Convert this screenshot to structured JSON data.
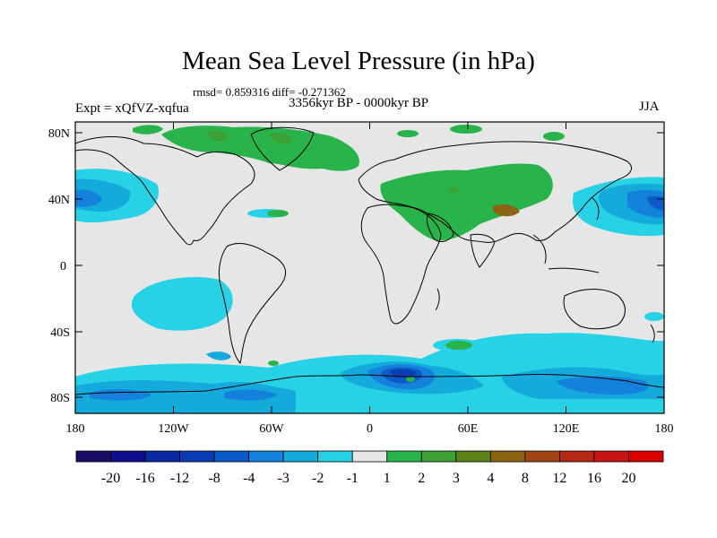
{
  "title": "Mean Sea Level Pressure (in hPa)",
  "stats": "rmsd= 0.859316 diff= -0.271362",
  "period": "3356kyr BP - 0000kyr BP",
  "expt_label": "Expt = xQfVZ-xqfua",
  "season": "JJA",
  "lat_ticks": [
    "80N",
    "40N",
    "0",
    "40S",
    "80S"
  ],
  "lon_ticks": [
    "180",
    "120W",
    "60W",
    "0",
    "60E",
    "120E",
    "180"
  ],
  "colorbar": {
    "labels": [
      "-20",
      "-16",
      "-12",
      "-8",
      "-4",
      "-3",
      "-2",
      "-1",
      "1",
      "2",
      "3",
      "4",
      "8",
      "12",
      "16",
      "20"
    ],
    "colors": [
      "#1a0c64",
      "#0f0f8c",
      "#0a28a0",
      "#0a3cb4",
      "#0a5ac8",
      "#1482dc",
      "#14aadc",
      "#28d2e6",
      "#e6e6e6",
      "#28b44b",
      "#3ca032",
      "#5a8214",
      "#8c6414",
      "#a04614",
      "#b42814",
      "#c81414",
      "#dc0000"
    ]
  },
  "map_background": "#e6e6e6"
}
